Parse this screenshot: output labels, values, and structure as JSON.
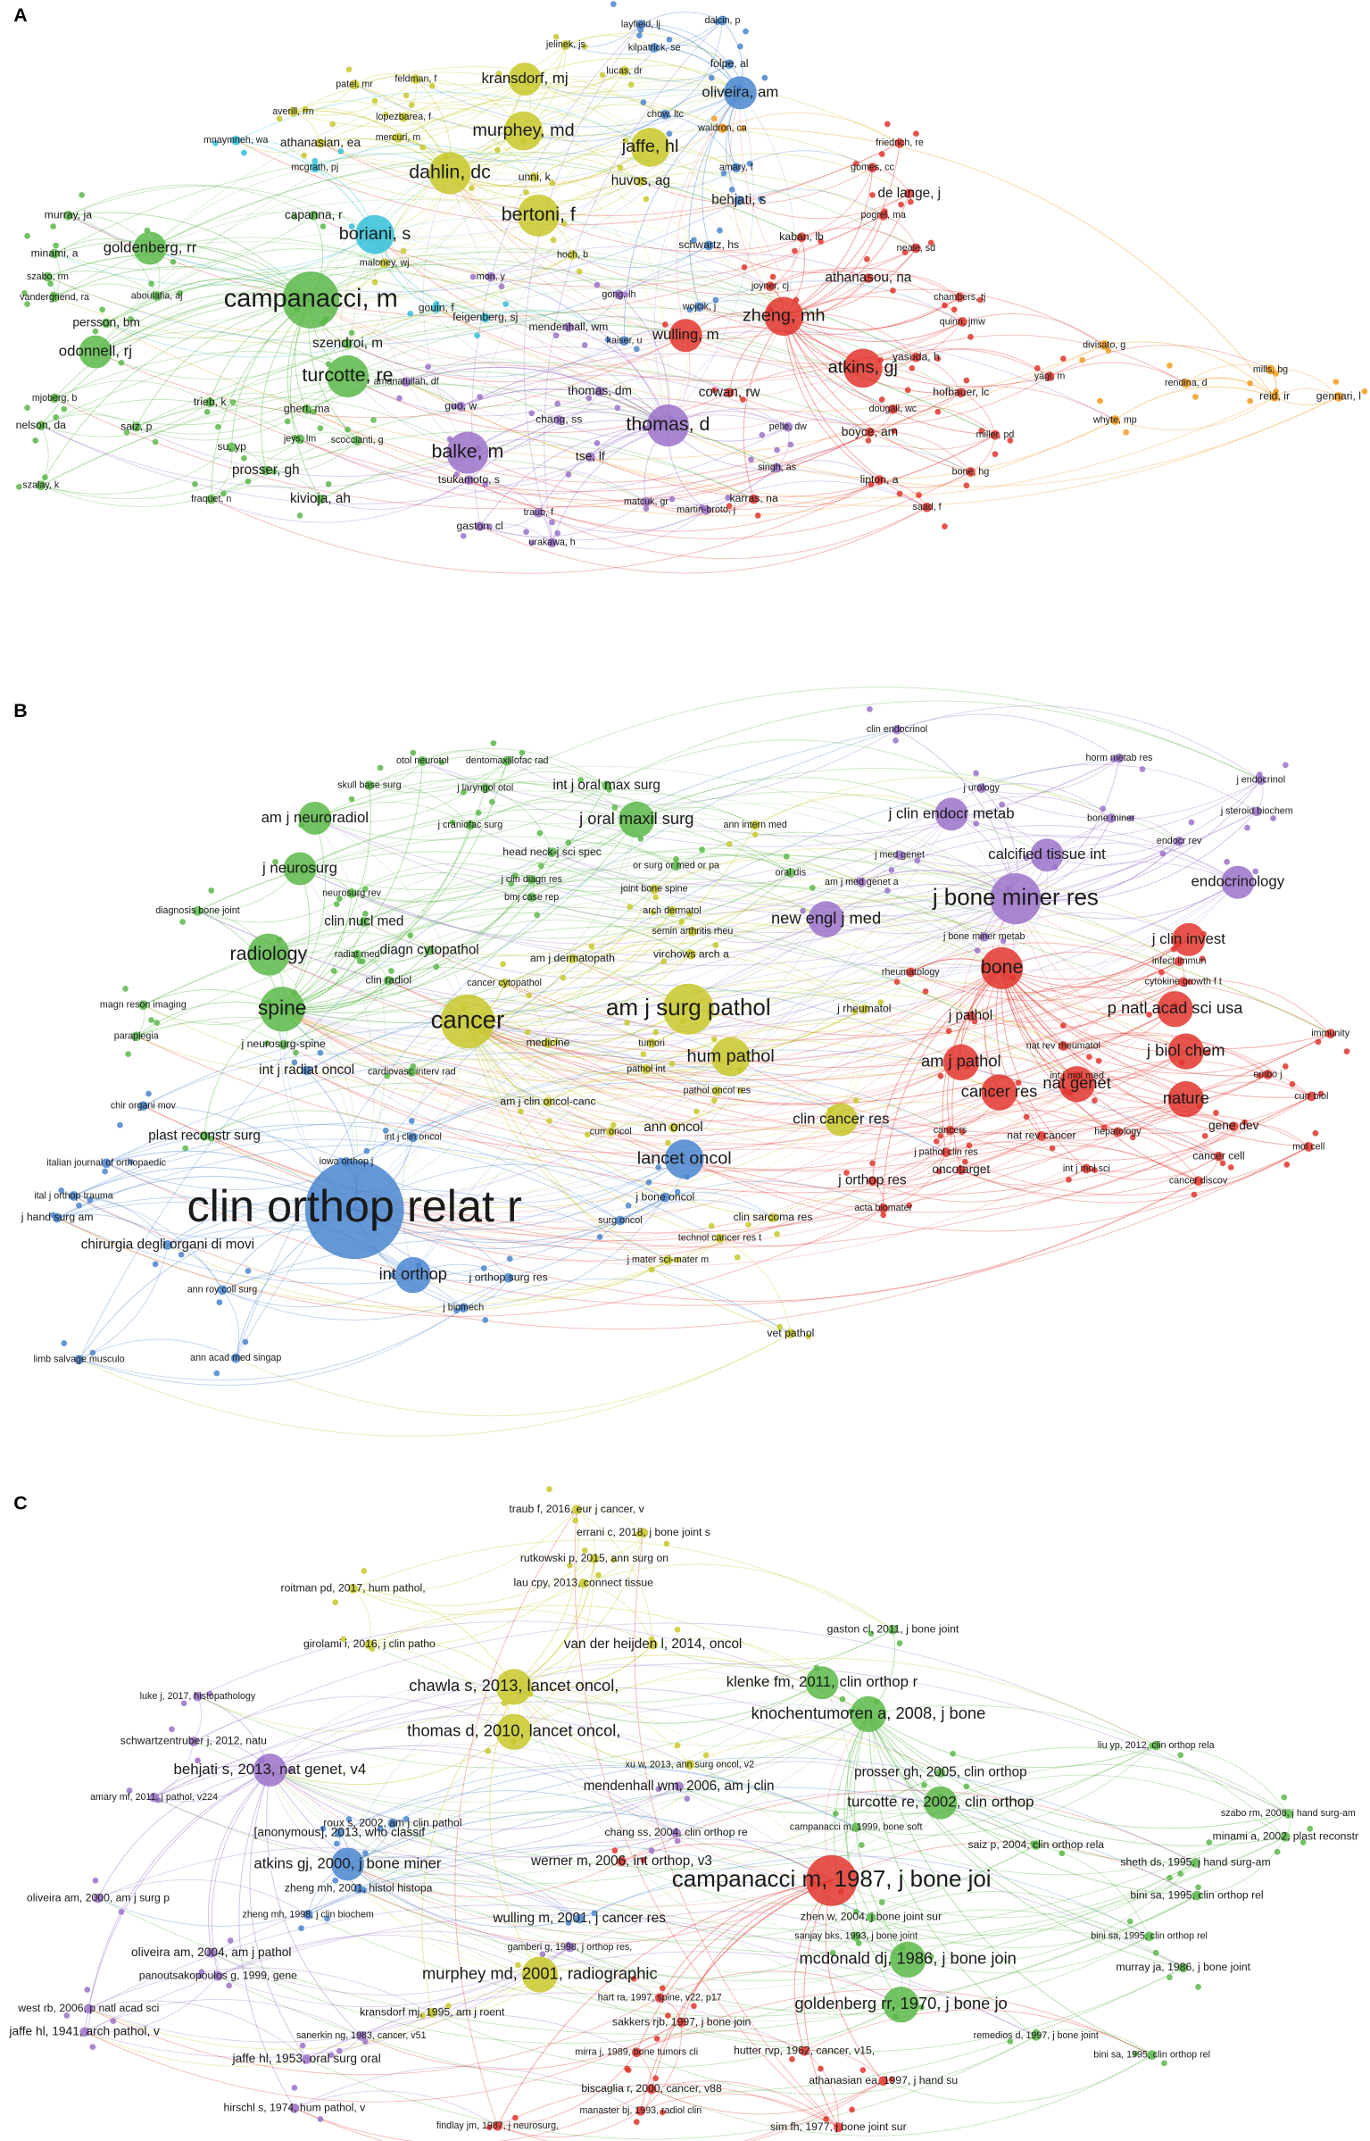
{
  "panels": [
    {
      "label": "A",
      "nodes": [
        "layfield, lj",
        "dalcin, p",
        "jelinek, js",
        "kilpatrick, se",
        "folpe, al",
        "lucas, dr",
        "kransdorf, mj",
        "oliveira, am",
        "patel, mr",
        "feldman, f",
        "averill, rm",
        "lopezbarea, f",
        "chow, ltc",
        "murphey, md",
        "mercuri, m",
        "waldron, ca",
        "friedrich, re",
        "athanasian, ea",
        "mnaymneh, wa",
        "jaffe, hl",
        "mcgrath, pj",
        "dahlin, dc",
        "unni, k",
        "amary, f",
        "gomes, cc",
        "huvos, ag",
        "de lange, j",
        "bertoni, f",
        "behjati, s",
        "pogrel, ma",
        "murray, ja",
        "capanna, r",
        "boriani, s",
        "minami, a",
        "goldenberg, rr",
        "kaban, lb",
        "neale, sd",
        "schwartz, hs",
        "hoch, b",
        "szabo, rm",
        "vandergriend, ra",
        "aboulafia, aj",
        "maloney, wj",
        "campanacci, m",
        "mon, y",
        "gong, lh",
        "joyner, cj",
        "athanasou, na",
        "chambers, tj",
        "wojcik, j",
        "zheng, mh",
        "quinn, jmw",
        "divisato, g",
        "gouin, f",
        "persson, bm",
        "feigenberg, sj",
        "mendenhall, wm",
        "kaiser, u",
        "wulling, m",
        "szendroi, m",
        "odonnell, rj",
        "yasuda, h",
        "atkins, gj",
        "yagi, m",
        "rendina, d",
        "mills, bg",
        "reid, ir",
        "gennari, l",
        "amanatullah, df",
        "thomas, dm",
        "cowan, rw",
        "turcotte, re",
        "hofbauer, lc",
        "mjoberg, b",
        "trieb, k",
        "guo, w",
        "dougall, wc",
        "whyte, mp",
        "ghert, ma",
        "thomas, d",
        "chang, ss",
        "nelson, da",
        "saiz, p",
        "miller, pd",
        "balke, m",
        "tse, lf",
        "pelle, dw",
        "boyce, am",
        "jeys, lm",
        "scoccianti, g",
        "su, yp",
        "prosser, gh",
        "szalay, k",
        "singh, as",
        "bone, hg",
        "lipton, a",
        "tsukamoto, s",
        "fraquet, n",
        "kivioja, ah",
        "karras, na",
        "matcuk, gr",
        "martin-broto, j",
        "saad, f",
        "traub, f",
        "gaston, cl",
        "urakawa, h"
      ]
    },
    {
      "label": "B",
      "nodes": [
        "clin endocrinol",
        "horm metab res",
        "otol neurotol",
        "dentomaxillofac rad",
        "skull base surg",
        "j laryngol otol",
        "int j oral max surg",
        "j endocrinol",
        "j urology",
        "j steroid biochem",
        "am j neuroradiol",
        "j craniofac surg",
        "j oral maxil surg",
        "ann intern med",
        "j clin endocr metab",
        "bone miner",
        "head neck-j sci spec",
        "endocr rev",
        "calcified tissue int",
        "j neurosurg",
        "or surg or med or pa",
        "oral dis",
        "j med genet",
        "neurosurg rev",
        "j clin diagn res",
        "bmj case rep",
        "joint bone spine",
        "am j med genet a",
        "j bone miner res",
        "endocrinology",
        "diagnosis bone joint",
        "arch dermatol",
        "new engl j med",
        "clin nucl med",
        "semin arthritis rheu",
        "j bone miner metab",
        "j clin invest",
        "radiology",
        "diagn cytopathol",
        "radiat med",
        "virchows arch a",
        "infect immun",
        "am j dermatopath",
        "rheumatology",
        "bone",
        "cytokine growth f t",
        "clin radiol",
        "cancer cytopathol",
        "am j surg pathol",
        "j rheumatol",
        "spine",
        "magn reson imaging",
        "j pathol",
        "p natl acad sci usa",
        "cancer",
        "paraplegia",
        "immunity",
        "j neurosurg-spine",
        "medicine",
        "tumori",
        "nat rev rheumatol",
        "j biol chem",
        "embo j",
        "int j radiat oncol",
        "hum pathol",
        "am j pathol",
        "cardiovasc interv rad",
        "pathol int",
        "int j mol med",
        "nat genet",
        "nature",
        "curr biol",
        "chir organi mov",
        "am j clin oncol-canc",
        "pathol oncol res",
        "cancer res",
        "clin cancer res",
        "nat rev cancer",
        "plast reconstr surg",
        "curr oncol",
        "int j clin oncol",
        "ann oncol",
        "cancers",
        "hepatology",
        "gene dev",
        "mol cell",
        "lancet oncol",
        "italian journal of orthopaedic",
        "iowa orthop j",
        "j pathol clin res",
        "cancer cell",
        "int j mol sci",
        "oncotarget",
        "j orthop res",
        "cancer discov",
        "clin orthop relat r",
        "ital j orthop trauma",
        "j bone oncol",
        "surg oncol",
        "clin sarcoma res",
        "acta biomater",
        "j hand surg am",
        "technol cancer res t",
        "chirurgia degli organi di movi",
        "j mater sci-mater m",
        "int orthop",
        "j orthop surg res",
        "ann roy coll surg",
        "j biomech",
        "vet pathol",
        "limb salvage musculo",
        "ann acad med singap"
      ]
    },
    {
      "label": "C",
      "nodes": [
        "traub f, 2016, eur j cancer, v",
        "errani c, 2018, j bone joint s",
        "rutkowski p, 2015, ann surg on",
        "lau cpy, 2013, connect tissue",
        "roitman pd, 2017, hum pathol,",
        "gaston cl, 2011, j bone joint",
        "girolami i, 2016, j clin patho",
        "van der heijden l, 2014, oncol",
        "klenke fm, 2011, clin orthop r",
        "chawla s, 2013, lancet oncol,",
        "luke j, 2017, histopathology",
        "knochentumoren a, 2008, j bone",
        "schwartzentruber j, 2012, natu",
        "thomas d, 2010, lancet oncol,",
        "liu yp, 2012, clin orthop rela",
        "behjati s, 2013, nat genet, v4",
        "xu w, 2013, ann surg oncol, v2",
        "prosser gh, 2005, clin orthop",
        "mendenhall wm, 2006, am j clin",
        "amary mf, 2011, j pathol, v224",
        "turcotte re, 2002, clin orthop",
        "szabo rm, 2006, j hand surg-am",
        "minami a, 2002, plast reconstr",
        "roux s, 2002, am j clin pathol",
        "[anonymous], 2013, who classif",
        "campanacci m, 1999, bone soft",
        "chang ss, 2004, clin orthop re",
        "saiz p, 2004, clin orthop rela",
        "werner m, 2006, int orthop, v3",
        "atkins gj, 2000, j bone miner",
        "sheth ds, 1995, j hand surg-am",
        "campanacci m, 1987, j bone joi",
        "zheng mh, 2001, histol histopa",
        "bini sa, 1995, clin orthop rel",
        "oliveira am, 2000, am j surg p",
        "zheng mh, 1998, j clin biochem",
        "wulling m, 2001, j cancer res",
        "zhen w, 2004, j bone joint sur",
        "bini sa, 1995, clin orthop rel",
        "sanjay bks, 1993, j bone joint",
        "gamberi g, 1998, j orthop res,",
        "mcdonald dj, 1986, j bone join",
        "oliveira am, 2004, am j pathol",
        "murray ja, 1986, j bone joint",
        "panoutsakopoulos g, 1999, gene",
        "murphey md, 2001, radiographic",
        "hart ra, 1997, spine, v22, p17",
        "west rb, 2006, p natl acad sci",
        "goldenberg rr, 1970, j bone jo",
        "kransdorf mj, 1995, am j roent",
        "sakkers rjb, 1997, j bone join",
        "jaffe hl, 1941, arch pathol, v",
        "sanerkin ng, 1983, cancer, v51",
        "remedios d, 1997, j bone joint",
        "jaffe hl, 1953, oral surg oral",
        "mirra j, 1989, bone tumors cli",
        "hutter rvp, 1962, cancer, v15,",
        "bini sa, 1995, clin orthop rel",
        "athanasian ea, 1997, j hand su",
        "biscaglia r, 2000, cancer, v88",
        "hirschl s, 1974, hum pathol, v",
        "manaster bj, 1993, radiol clin",
        "findlay jm, 1987, j neurosurg,",
        "sim fh, 1977, j bone joint sur"
      ]
    }
  ]
}
